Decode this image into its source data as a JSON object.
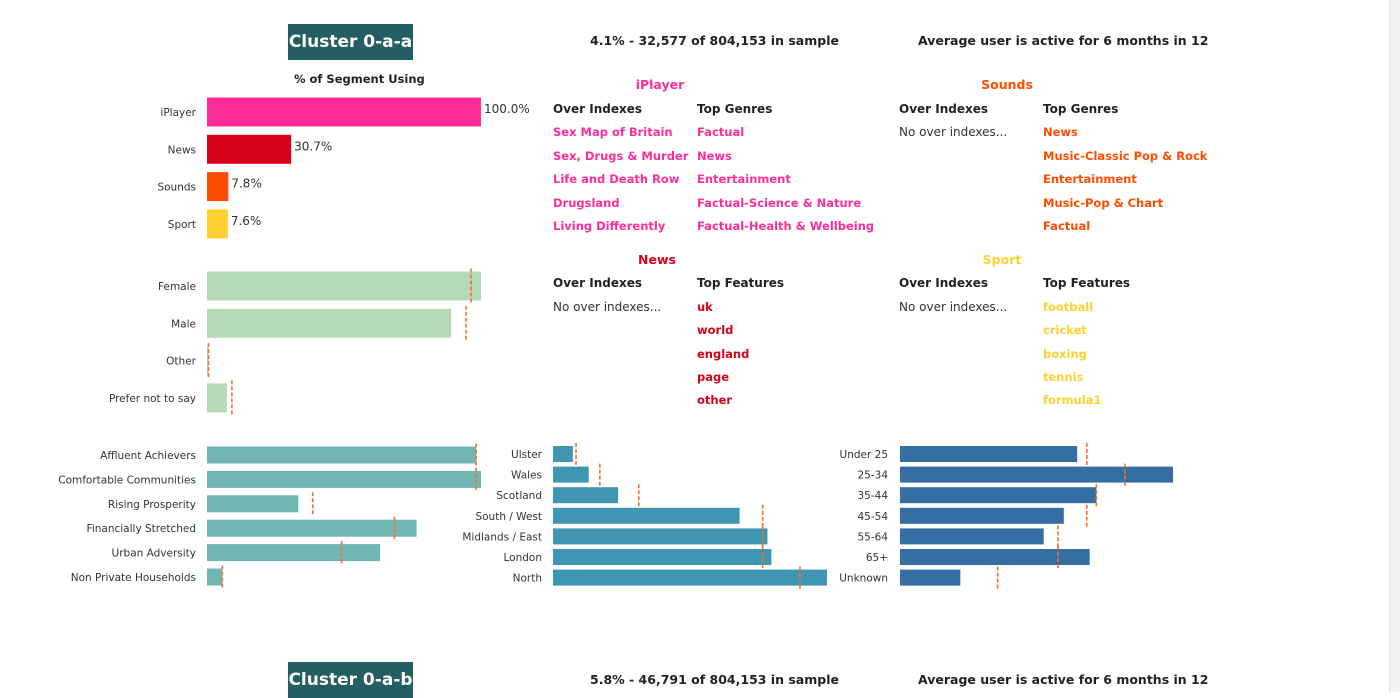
{
  "clusters": [
    {
      "name": "Cluster 0-a-a",
      "sample": "4.1% - 32,577 of 804,153 in sample",
      "active": "Average user is active for 6 months in 12"
    },
    {
      "name": "Cluster 0-a-b",
      "sample": "5.8% - 46,791 of 804,153 in sample",
      "active": "Average user is active for 6 months in 12"
    }
  ],
  "usage_heading": "% of Segment Using",
  "colors": {
    "iplayer": "#ff2d9a",
    "news": "#d8001b",
    "sounds": "#ff4c00",
    "sport": "#ffd12e",
    "gender": "#b4dab8",
    "segment": "#6fb5b1",
    "region": "#3f95b2",
    "age": "#356ea3",
    "marker": "#ff6a2a",
    "badge": "#245e63"
  },
  "panels": {
    "iplayer": {
      "title": "iPlayer",
      "col1": "Over Indexes",
      "col2": "Top Genres",
      "over_indexes": [
        "Sex Map of Britain",
        "Sex, Drugs & Murder",
        "Life and Death Row",
        "Drugsland",
        "Living Differently"
      ],
      "top": [
        "Factual",
        "News",
        "Entertainment",
        "Factual-Science & Nature",
        "Factual-Health & Wellbeing"
      ]
    },
    "sounds": {
      "title": "Sounds",
      "col1": "Over Indexes",
      "col2": "Top Genres",
      "no_over": "No over indexes...",
      "top": [
        "News",
        "Music-Classic Pop & Rock",
        "Entertainment",
        "Music-Pop & Chart",
        "Factual"
      ]
    },
    "news": {
      "title": "News",
      "col1": "Over Indexes",
      "col2": "Top Features",
      "no_over": "No over indexes...",
      "top": [
        "uk",
        "world",
        "england",
        "page",
        "other"
      ]
    },
    "sport": {
      "title": "Sport",
      "col1": "Over Indexes",
      "col2": "Top Features",
      "no_over": "No over indexes...",
      "top": [
        "football",
        "cricket",
        "boxing",
        "tennis",
        "formula1"
      ]
    }
  },
  "chart_data": [
    {
      "type": "bar",
      "title": "% of Segment Using",
      "orientation": "horizontal",
      "categories": [
        "iPlayer",
        "News",
        "Sounds",
        "Sport"
      ],
      "values": [
        100.0,
        30.7,
        7.8,
        7.6
      ],
      "labels": [
        "100.0%",
        "30.7%",
        "7.8%",
        "7.6%"
      ],
      "xlim": [
        0,
        100
      ]
    },
    {
      "type": "bar",
      "orientation": "horizontal",
      "categories": [
        "Female",
        "Male",
        "Other",
        "Prefer not to say"
      ],
      "values": [
        55,
        49,
        0.3,
        4
      ],
      "benchmark": [
        53,
        52,
        0.3,
        5
      ],
      "xlim": [
        0,
        55
      ]
    },
    {
      "type": "bar",
      "orientation": "horizontal",
      "categories": [
        "Affluent Achievers",
        "Comfortable Communities",
        "Rising Prosperity",
        "Financially Stretched",
        "Urban Adversity",
        "Non Private Households"
      ],
      "values": [
        28,
        28.5,
        9.5,
        21.8,
        18,
        1.6
      ],
      "benchmark": [
        28,
        28,
        11,
        19.5,
        14,
        1.6
      ],
      "xlim": [
        0,
        28.5
      ]
    },
    {
      "type": "bar",
      "orientation": "horizontal",
      "categories": [
        "Ulster",
        "Wales",
        "Scotland",
        "South / West",
        "Midlands / East",
        "London",
        "North"
      ],
      "values": [
        2.5,
        4.5,
        8.2,
        23.5,
        27,
        27.5,
        34.5
      ],
      "benchmark": [
        2.9,
        5.9,
        10.8,
        26.4,
        26.4,
        26.4,
        31.1
      ],
      "xlim": [
        0,
        34.5
      ]
    },
    {
      "type": "bar",
      "orientation": "horizontal",
      "categories": [
        "Under 25",
        "25-34",
        "35-44",
        "45-54",
        "55-64",
        "65+",
        "Unknown"
      ],
      "values": [
        18.5,
        28.5,
        20.5,
        17.1,
        15,
        19.8,
        6.3
      ],
      "benchmark": [
        19.5,
        23.5,
        20.5,
        19.5,
        16.5,
        16.5,
        10.2
      ],
      "xlim": [
        0,
        28.5
      ]
    }
  ]
}
